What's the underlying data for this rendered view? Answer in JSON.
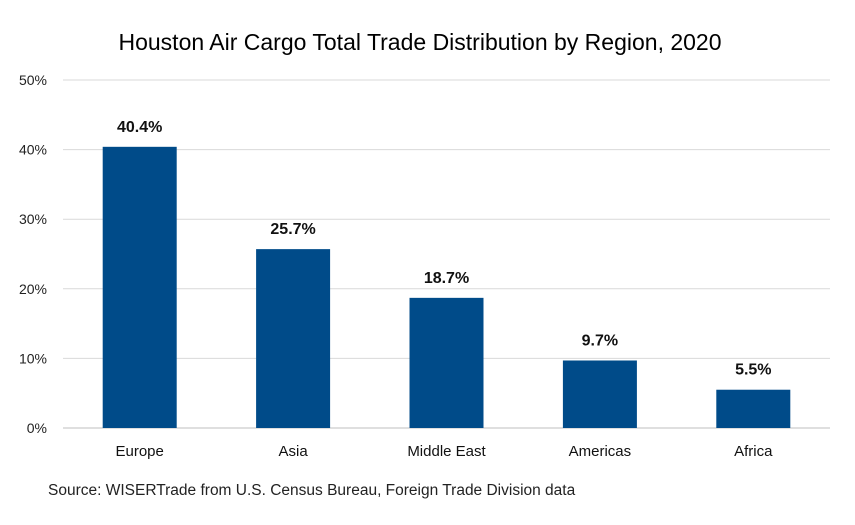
{
  "chart_data": {
    "type": "bar",
    "title": "Houston Air Cargo Total Trade Distribution by Region, 2020",
    "categories": [
      "Europe",
      "Asia",
      "Middle East",
      "Americas",
      "Africa"
    ],
    "values": [
      40.4,
      25.7,
      18.7,
      9.7,
      5.5
    ],
    "data_labels": [
      "40.4%",
      "25.7%",
      "18.7%",
      "9.7%",
      "5.5%"
    ],
    "xlabel": "",
    "ylabel": "",
    "ylim": [
      0,
      50
    ],
    "yticks": [
      0,
      10,
      20,
      30,
      40,
      50
    ],
    "ytick_labels": [
      "0%",
      "10%",
      "20%",
      "30%",
      "40%",
      "50%"
    ],
    "grid": true,
    "legend": "none",
    "bar_color": "#004b89",
    "grid_color": "#d9d9d9"
  },
  "source": "Source: WISERTrade from U.S. Census Bureau, Foreign Trade Division data"
}
